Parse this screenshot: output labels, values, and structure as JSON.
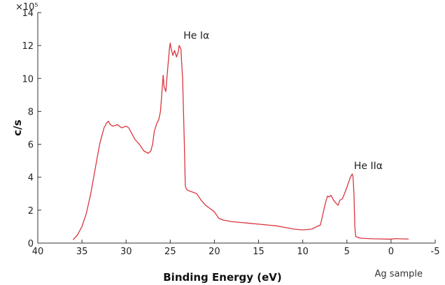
{
  "chart_data": {
    "type": "line",
    "xlabel": "Binding Energy (eV)",
    "ylabel": "c/s",
    "y_multiplier": "×10⁵",
    "xlim": [
      40,
      -5
    ],
    "ylim": [
      0,
      14
    ],
    "x_reversed": true,
    "x_ticks": [
      "40",
      "35",
      "30",
      "25",
      "20",
      "15",
      "10",
      "5",
      "0",
      "-5"
    ],
    "x_tick_values": [
      40,
      35,
      30,
      25,
      20,
      15,
      10,
      5,
      0,
      -5
    ],
    "y_ticks": [
      "0",
      "2",
      "4",
      "6",
      "8",
      "10",
      "12",
      "14"
    ],
    "y_tick_values": [
      0,
      2,
      4,
      6,
      8,
      10,
      12,
      14
    ],
    "grid": false,
    "line_color": "#d9363e",
    "annotations": [
      {
        "text": "He Iα",
        "x": 23.5,
        "y": 12.4
      },
      {
        "text": "He IIα",
        "x": 4.2,
        "y": 4.5
      }
    ],
    "note": "Ag sample",
    "series": [
      {
        "x": [
          36.0,
          35.5,
          35.0,
          34.5,
          34.0,
          33.5,
          33.0,
          32.5,
          32.2,
          32.0,
          31.8,
          31.5,
          31.0,
          30.5,
          30.0,
          29.7,
          29.5,
          29.0,
          28.5,
          28.0,
          27.5,
          27.2,
          27.0,
          26.8,
          26.5,
          26.3,
          26.1,
          25.9,
          25.8,
          25.7,
          25.5,
          25.3,
          25.1,
          25.0,
          24.9,
          24.7,
          24.5,
          24.3,
          24.1,
          24.0,
          23.8,
          23.6,
          23.4,
          23.3,
          23.2,
          23.0,
          22.5,
          22.0,
          21.5,
          21.0,
          20.5,
          20.0,
          19.5,
          19.0,
          18.0,
          17.0,
          16.0,
          15.0,
          14.0,
          13.0,
          12.0,
          11.0,
          10.0,
          9.0,
          8.0,
          7.7,
          7.4,
          7.2,
          7.0,
          6.8,
          6.5,
          6.2,
          6.0,
          5.8,
          5.5,
          5.2,
          5.0,
          4.8,
          4.6,
          4.4,
          4.3,
          4.2,
          4.1,
          4.0,
          3.5,
          3.0,
          2.0,
          1.0,
          0.5,
          0.0,
          -0.5,
          -1.0,
          -1.5,
          -2.0
        ],
        "y": [
          0.2,
          0.5,
          1.0,
          1.8,
          3.0,
          4.5,
          6.0,
          7.0,
          7.3,
          7.4,
          7.2,
          7.1,
          7.2,
          7.0,
          7.1,
          7.0,
          6.8,
          6.3,
          6.0,
          5.6,
          5.45,
          5.6,
          6.0,
          6.8,
          7.3,
          7.5,
          8.0,
          9.5,
          10.2,
          9.5,
          9.2,
          10.5,
          11.8,
          12.15,
          11.8,
          11.4,
          11.7,
          11.3,
          11.6,
          12.0,
          11.8,
          10.0,
          6.0,
          3.5,
          3.3,
          3.2,
          3.1,
          3.0,
          2.6,
          2.3,
          2.1,
          1.9,
          1.5,
          1.4,
          1.3,
          1.25,
          1.2,
          1.15,
          1.1,
          1.05,
          0.95,
          0.85,
          0.8,
          0.85,
          1.1,
          1.8,
          2.5,
          2.85,
          2.8,
          2.9,
          2.6,
          2.4,
          2.3,
          2.6,
          2.7,
          3.1,
          3.4,
          3.7,
          4.0,
          4.2,
          4.0,
          3.0,
          1.0,
          0.4,
          0.3,
          0.28,
          0.26,
          0.25,
          0.24,
          0.24,
          0.27,
          0.26,
          0.25,
          0.25
        ]
      }
    ]
  }
}
